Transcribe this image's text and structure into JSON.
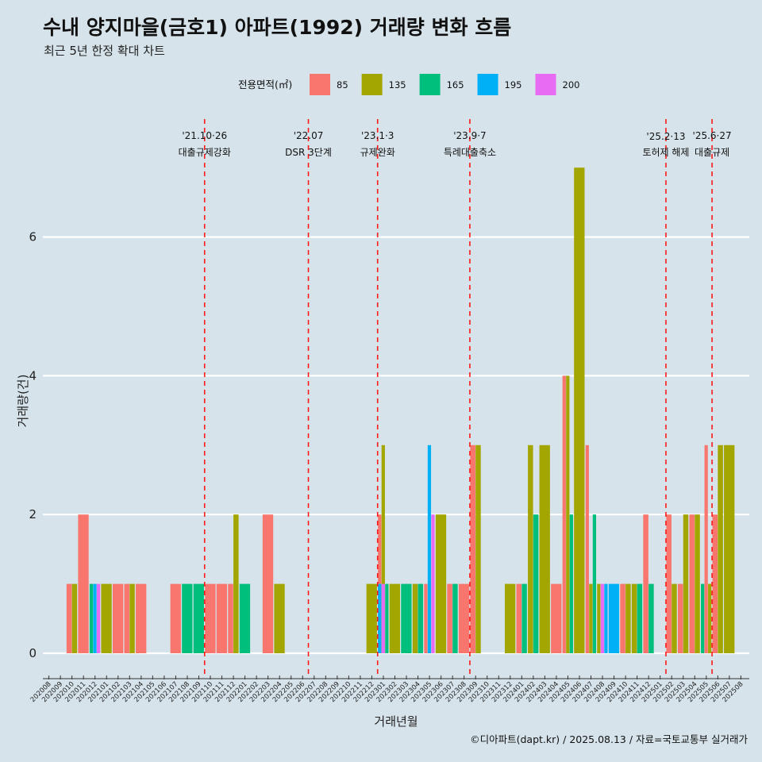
{
  "header": {
    "title": "수내 양지마을(금호1) 아파트(1992) 거래량 변화 흐름",
    "subtitle": "최근 5년 한정 확대 차트"
  },
  "legend": {
    "title": "전용면적(㎡)",
    "items": [
      {
        "label": "85",
        "color": "#F8766D"
      },
      {
        "label": "135",
        "color": "#A3A500"
      },
      {
        "label": "165",
        "color": "#00BF7D"
      },
      {
        "label": "195",
        "color": "#00B0F6"
      },
      {
        "label": "200",
        "color": "#E76BF3"
      }
    ]
  },
  "caption": "©디아파트(dapt.kr) / 2025.08.13 / 자료=국토교통부 실거래가",
  "chart_data": {
    "type": "bar",
    "title": "수내 양지마을(금호1) 아파트(1992) 거래량 변화 흐름",
    "subtitle": "최근 5년 한정 확대 차트",
    "xlabel": "거래년월",
    "ylabel": "거래량(건)",
    "ylim": [
      0,
      7
    ],
    "yticks": [
      0,
      2,
      4,
      6
    ],
    "grid": true,
    "legend_position": "top",
    "x": [
      "202008",
      "202009",
      "202010",
      "202011",
      "202012",
      "202101",
      "202102",
      "202103",
      "202104",
      "202105",
      "202106",
      "202107",
      "202108",
      "202109",
      "202110",
      "202111",
      "202112",
      "202201",
      "202202",
      "202203",
      "202204",
      "202205",
      "202206",
      "202207",
      "202208",
      "202209",
      "202210",
      "202211",
      "202212",
      "202301",
      "202302",
      "202303",
      "202304",
      "202305",
      "202306",
      "202307",
      "202308",
      "202309",
      "202310",
      "202311",
      "202312",
      "202401",
      "202402",
      "202403",
      "202404",
      "202405",
      "202406",
      "202407",
      "202408",
      "202409",
      "202410",
      "202411",
      "202412",
      "202501",
      "202502",
      "202503",
      "202504",
      "202505",
      "202506",
      "202507",
      "202508"
    ],
    "bars": [
      {
        "x": "202010",
        "segments": [
          {
            "size": "85",
            "value": 1
          },
          {
            "size": "135",
            "value": 1
          }
        ]
      },
      {
        "x": "202011",
        "segments": [
          {
            "size": "85",
            "value": 2
          }
        ]
      },
      {
        "x": "202012",
        "segments": [
          {
            "size": "165",
            "value": 1
          },
          {
            "size": "195",
            "value": 1
          },
          {
            "size": "200",
            "value": 1
          }
        ]
      },
      {
        "x": "202101",
        "segments": [
          {
            "size": "135",
            "value": 1
          }
        ]
      },
      {
        "x": "202102",
        "segments": [
          {
            "size": "85",
            "value": 1
          }
        ]
      },
      {
        "x": "202103",
        "segments": [
          {
            "size": "85",
            "value": 1
          },
          {
            "size": "135",
            "value": 1
          }
        ]
      },
      {
        "x": "202104",
        "segments": [
          {
            "size": "85",
            "value": 1
          }
        ]
      },
      {
        "x": "202107",
        "segments": [
          {
            "size": "85",
            "value": 1
          }
        ]
      },
      {
        "x": "202108",
        "segments": [
          {
            "size": "165",
            "value": 1
          }
        ]
      },
      {
        "x": "202109",
        "segments": [
          {
            "size": "165",
            "value": 1
          }
        ]
      },
      {
        "x": "202110",
        "segments": [
          {
            "size": "85",
            "value": 1
          }
        ]
      },
      {
        "x": "202111",
        "segments": [
          {
            "size": "85",
            "value": 1
          }
        ]
      },
      {
        "x": "202112",
        "segments": [
          {
            "size": "85",
            "value": 1
          },
          {
            "size": "135",
            "value": 2
          }
        ]
      },
      {
        "x": "202201",
        "segments": [
          {
            "size": "165",
            "value": 1
          }
        ]
      },
      {
        "x": "202203",
        "segments": [
          {
            "size": "85",
            "value": 2
          }
        ]
      },
      {
        "x": "202204",
        "segments": [
          {
            "size": "135",
            "value": 1
          }
        ]
      },
      {
        "x": "202212",
        "segments": [
          {
            "size": "135",
            "value": 1
          }
        ]
      },
      {
        "x": "202301",
        "segments": [
          {
            "size": "85",
            "value": 2
          },
          {
            "size": "135",
            "value": 3
          },
          {
            "size": "165",
            "value": 1
          },
          {
            "size": "195",
            "value": 1
          },
          {
            "size": "200",
            "value": 1
          }
        ]
      },
      {
        "x": "202302",
        "segments": [
          {
            "size": "135",
            "value": 1
          }
        ]
      },
      {
        "x": "202303",
        "segments": [
          {
            "size": "165",
            "value": 1
          }
        ]
      },
      {
        "x": "202304",
        "segments": [
          {
            "size": "135",
            "value": 1
          },
          {
            "size": "165",
            "value": 1
          }
        ]
      },
      {
        "x": "202305",
        "segments": [
          {
            "size": "85",
            "value": 1
          },
          {
            "size": "195",
            "value": 3
          },
          {
            "size": "200",
            "value": 2
          }
        ]
      },
      {
        "x": "202306",
        "segments": [
          {
            "size": "135",
            "value": 2
          }
        ]
      },
      {
        "x": "202307",
        "segments": [
          {
            "size": "85",
            "value": 1
          },
          {
            "size": "165",
            "value": 1
          }
        ]
      },
      {
        "x": "202308",
        "segments": [
          {
            "size": "85",
            "value": 1
          }
        ]
      },
      {
        "x": "202309",
        "segments": [
          {
            "size": "85",
            "value": 3
          },
          {
            "size": "135",
            "value": 3
          }
        ]
      },
      {
        "x": "202312",
        "segments": [
          {
            "size": "135",
            "value": 1
          }
        ]
      },
      {
        "x": "202401",
        "segments": [
          {
            "size": "85",
            "value": 1
          },
          {
            "size": "165",
            "value": 1
          }
        ]
      },
      {
        "x": "202402",
        "segments": [
          {
            "size": "135",
            "value": 3
          },
          {
            "size": "165",
            "value": 2
          }
        ]
      },
      {
        "x": "202403",
        "segments": [
          {
            "size": "135",
            "value": 3
          }
        ]
      },
      {
        "x": "202404",
        "segments": [
          {
            "size": "85",
            "value": 1
          }
        ]
      },
      {
        "x": "202405",
        "segments": [
          {
            "size": "85",
            "value": 4
          },
          {
            "size": "135",
            "value": 4
          },
          {
            "size": "165",
            "value": 2
          }
        ]
      },
      {
        "x": "202406",
        "segments": [
          {
            "size": "135",
            "value": 7
          }
        ]
      },
      {
        "x": "202407",
        "segments": [
          {
            "size": "85",
            "value": 3
          },
          {
            "size": "135",
            "value": 1
          },
          {
            "size": "165",
            "value": 2
          }
        ]
      },
      {
        "x": "202408",
        "segments": [
          {
            "size": "135",
            "value": 1
          },
          {
            "size": "200",
            "value": 1
          },
          {
            "size": "195",
            "value": 1
          }
        ]
      },
      {
        "x": "202409",
        "segments": [
          {
            "size": "195",
            "value": 1
          }
        ]
      },
      {
        "x": "202410",
        "segments": [
          {
            "size": "85",
            "value": 1
          },
          {
            "size": "135",
            "value": 1
          }
        ]
      },
      {
        "x": "202411",
        "segments": [
          {
            "size": "135",
            "value": 1
          },
          {
            "size": "165",
            "value": 1
          }
        ]
      },
      {
        "x": "202412",
        "segments": [
          {
            "size": "85",
            "value": 2
          },
          {
            "size": "165",
            "value": 1
          }
        ]
      },
      {
        "x": "202502",
        "segments": [
          {
            "size": "85",
            "value": 2
          },
          {
            "size": "135",
            "value": 1
          }
        ]
      },
      {
        "x": "202503",
        "segments": [
          {
            "size": "85",
            "value": 1
          },
          {
            "size": "135",
            "value": 2
          }
        ]
      },
      {
        "x": "202504",
        "segments": [
          {
            "size": "85",
            "value": 2
          },
          {
            "size": "135",
            "value": 2
          }
        ]
      },
      {
        "x": "202505",
        "segments": [
          {
            "size": "165",
            "value": 1
          },
          {
            "size": "85",
            "value": 3
          },
          {
            "size": "135",
            "value": 1
          }
        ]
      },
      {
        "x": "202506",
        "segments": [
          {
            "size": "85",
            "value": 2
          },
          {
            "size": "135",
            "value": 3
          }
        ]
      },
      {
        "x": "202507",
        "segments": [
          {
            "size": "135",
            "value": 3
          }
        ]
      }
    ],
    "events": [
      {
        "x": "202110",
        "date": "'21.10·26",
        "label": "대출규제강화"
      },
      {
        "x": "202207",
        "date": "'22.07",
        "label": "DSR 3단계"
      },
      {
        "x": "202301",
        "date": "'23.1·3",
        "label": "규제완화"
      },
      {
        "x": "202309",
        "date": "'23.9·7",
        "label": "특례대출축소"
      },
      {
        "x": "202502",
        "date": "'25.2·13",
        "label": "토허제 해제"
      },
      {
        "x": "202506",
        "date": "'25.6·27",
        "label": "대출규제"
      }
    ]
  }
}
